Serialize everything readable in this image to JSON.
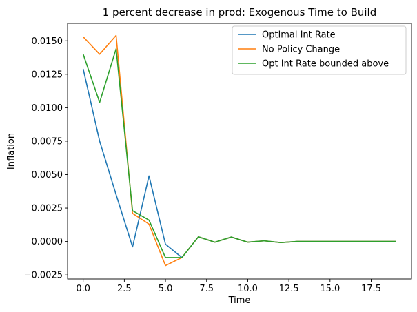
{
  "chart_data": {
    "type": "line",
    "title": "1 percent decrease in prod: Exogenous Time to Build",
    "xlabel": "Time",
    "ylabel": "Inflation",
    "xlim": [
      -0.95,
      19.95
    ],
    "ylim": [
      -0.0028,
      0.0163
    ],
    "xticks": [
      0.0,
      2.5,
      5.0,
      7.5,
      10.0,
      12.5,
      15.0,
      17.5
    ],
    "xtick_labels": [
      "0.0",
      "2.5",
      "5.0",
      "7.5",
      "10.0",
      "12.5",
      "15.0",
      "17.5"
    ],
    "yticks": [
      -0.0025,
      0.0,
      0.0025,
      0.005,
      0.0075,
      0.01,
      0.0125,
      0.015
    ],
    "ytick_labels": [
      "−0.0025",
      "0.0000",
      "0.0025",
      "0.0050",
      "0.0075",
      "0.0100",
      "0.0125",
      "0.0150"
    ],
    "grid": false,
    "legend_position": "top-right",
    "x": [
      0,
      1,
      2,
      3,
      4,
      5,
      6,
      7,
      8,
      9,
      10,
      11,
      12,
      13,
      14,
      15,
      16,
      17,
      18,
      19
    ],
    "series": [
      {
        "name": "Optimal Int Rate",
        "color": "#1f77b4",
        "values": [
          0.0129,
          0.0075,
          0.0035,
          -0.0004,
          0.0049,
          -0.0002,
          -0.0012,
          0.00035,
          -5e-05,
          0.00033,
          -5e-05,
          5e-05,
          -8e-05,
          0.0,
          0.0,
          0.0,
          0.0,
          0.0,
          0.0,
          0.0
        ]
      },
      {
        "name": "No Policy Change",
        "color": "#ff7f0e",
        "values": [
          0.0153,
          0.014,
          0.0154,
          0.0021,
          0.0013,
          -0.0018,
          -0.0012,
          0.00035,
          -5e-05,
          0.00033,
          -5e-05,
          5e-05,
          -8e-05,
          0.0,
          0.0,
          0.0,
          0.0,
          0.0,
          0.0,
          0.0
        ]
      },
      {
        "name": "Opt Int Rate bounded above",
        "color": "#2ca02c",
        "values": [
          0.014,
          0.0104,
          0.0144,
          0.0023,
          0.0016,
          -0.0012,
          -0.0012,
          0.00035,
          -5e-05,
          0.00033,
          -5e-05,
          5e-05,
          -8e-05,
          0.0,
          0.0,
          0.0,
          0.0,
          0.0,
          0.0,
          0.0
        ]
      }
    ]
  }
}
